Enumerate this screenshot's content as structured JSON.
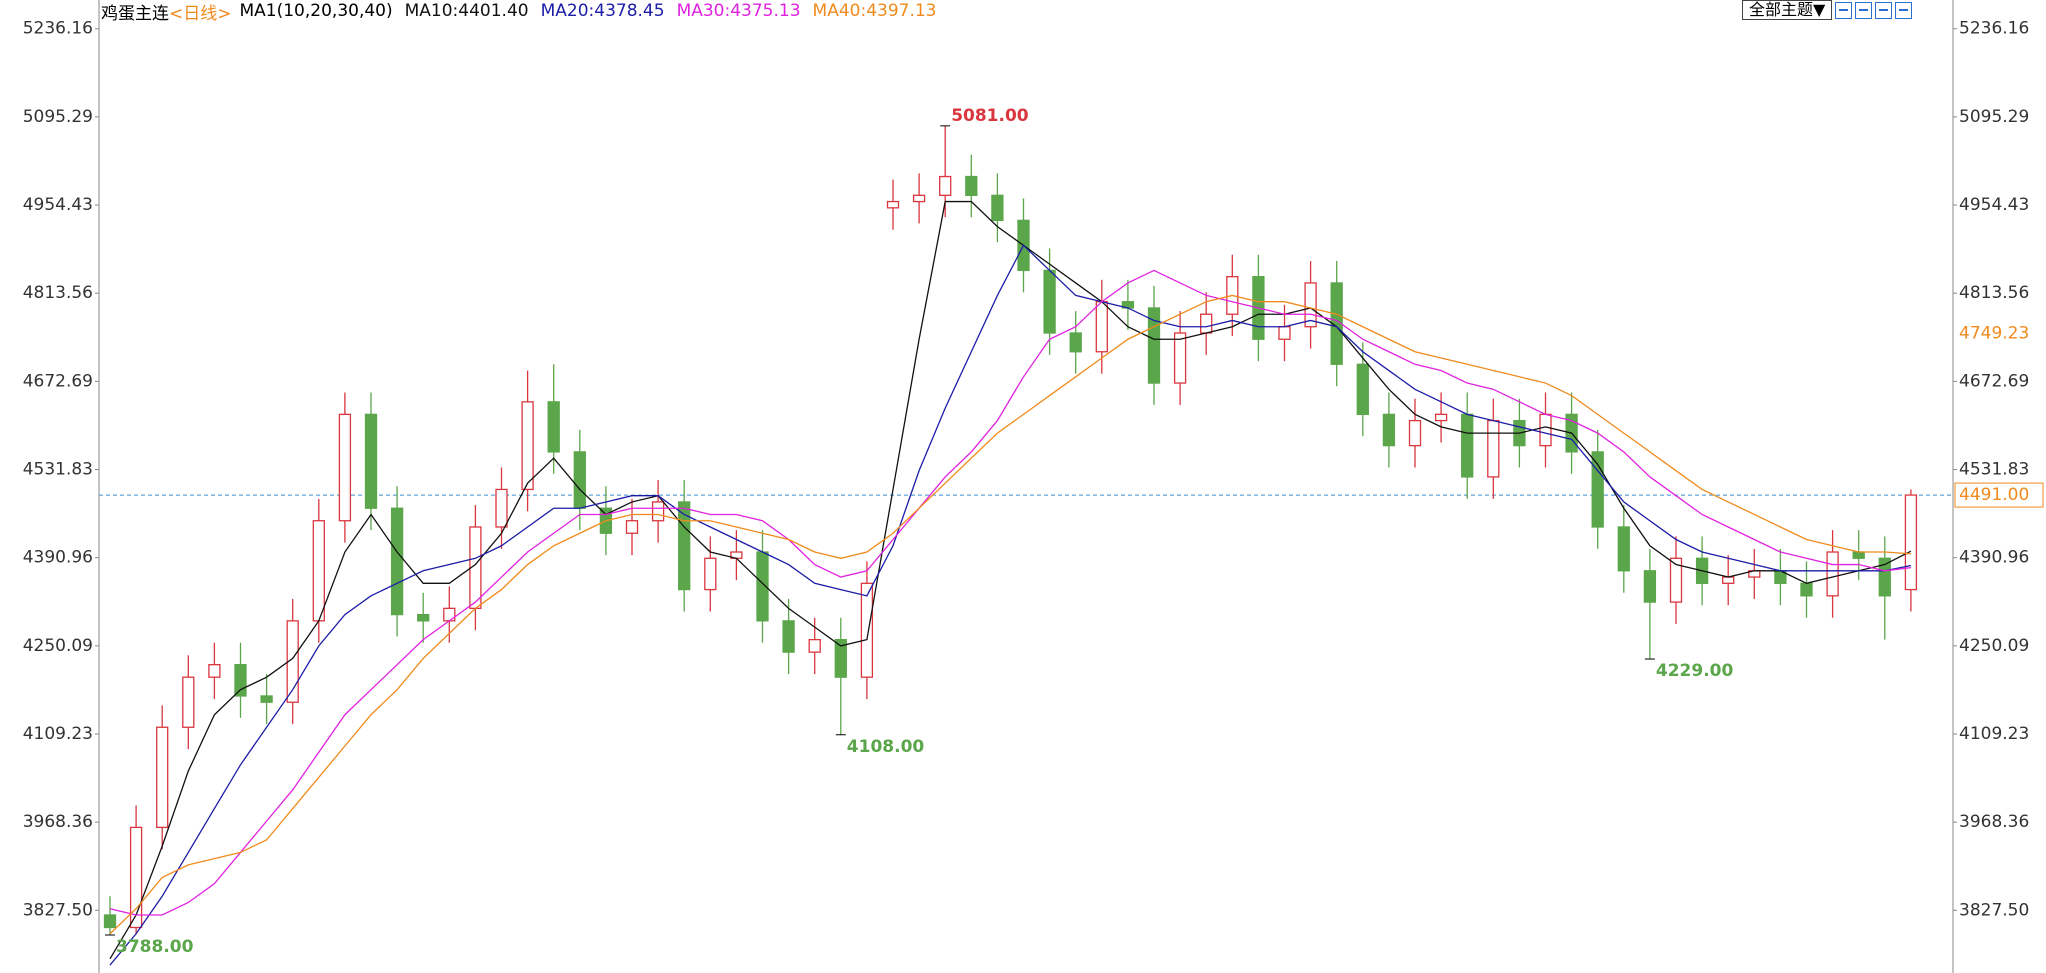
{
  "chart_data": {
    "type": "candlestick",
    "title": "鸡蛋主连",
    "period": "<日线>",
    "indicator": "MA1(10,20,30,40)",
    "up_color": "#d9363e",
    "down_color": "#5ba64a",
    "ylim": [
      3727.3,
      5282.1
    ],
    "yticks": [
      {
        "value": 3827.5,
        "label": "3827.50"
      },
      3968.36,
      4109.23,
      4250.09,
      4390.96,
      4531.83,
      4672.69,
      4813.56,
      4954.43,
      5095.29,
      5236.16
    ],
    "candles": {
      "open": [
        3820,
        3800,
        3960,
        4120,
        4200,
        4220,
        4170,
        4160,
        4290,
        4450,
        4620,
        4470,
        4300,
        4290,
        4310,
        4440,
        4500,
        4640,
        4560,
        4470,
        4430,
        4450,
        4480,
        4340,
        4390,
        4400,
        4290,
        4240,
        4260,
        4200,
        4950,
        4960,
        4970,
        5000,
        4970,
        4930,
        4850,
        4750,
        4720,
        4800,
        4790,
        4670,
        4750,
        4780,
        4840,
        4740,
        4760,
        4830,
        4700,
        4620,
        4570,
        4610,
        4620,
        4520,
        4610,
        4570,
        4620,
        4560,
        4440,
        4370,
        4320,
        4390,
        4350,
        4360,
        4370,
        4350,
        4330,
        4400,
        4390,
        4340
      ],
      "high": [
        3850,
        3995,
        4155,
        4235,
        4255,
        4255,
        4205,
        4325,
        4485,
        4655,
        4655,
        4505,
        4335,
        4345,
        4475,
        4535,
        4690,
        4700,
        4595,
        4505,
        4485,
        4515,
        4515,
        4425,
        4435,
        4435,
        4325,
        4295,
        4295,
        4385,
        4995,
        5005,
        5081,
        5035,
        5005,
        4965,
        4885,
        4785,
        4835,
        4835,
        4825,
        4785,
        4815,
        4875,
        4875,
        4795,
        4865,
        4865,
        4735,
        4655,
        4645,
        4655,
        4655,
        4645,
        4645,
        4655,
        4655,
        4595,
        4475,
        4405,
        4425,
        4425,
        4395,
        4405,
        4405,
        4385,
        4435,
        4435,
        4425,
        4500
      ],
      "low": [
        3788,
        3790,
        3925,
        4085,
        4165,
        4135,
        4125,
        4125,
        4255,
        4415,
        4435,
        4265,
        4255,
        4255,
        4275,
        4405,
        4465,
        4525,
        4435,
        4395,
        4395,
        4415,
        4305,
        4305,
        4355,
        4255,
        4205,
        4205,
        4108,
        4165,
        4915,
        4925,
        4935,
        4935,
        4895,
        4815,
        4715,
        4685,
        4685,
        4755,
        4635,
        4635,
        4715,
        4745,
        4705,
        4705,
        4725,
        4665,
        4585,
        4535,
        4535,
        4575,
        4485,
        4485,
        4535,
        4535,
        4525,
        4405,
        4335,
        4229,
        4285,
        4315,
        4315,
        4325,
        4315,
        4295,
        4295,
        4355,
        4260,
        4305
      ],
      "close": [
        3800,
        3960,
        4120,
        4200,
        4220,
        4170,
        4160,
        4290,
        4450,
        4620,
        4470,
        4300,
        4290,
        4310,
        4440,
        4500,
        4640,
        4560,
        4470,
        4430,
        4450,
        4480,
        4340,
        4390,
        4400,
        4290,
        4240,
        4260,
        4200,
        4350,
        4960,
        4970,
        5000,
        4970,
        4930,
        4850,
        4750,
        4720,
        4800,
        4790,
        4670,
        4750,
        4780,
        4840,
        4740,
        4760,
        4830,
        4700,
        4620,
        4570,
        4610,
        4620,
        4520,
        4610,
        4570,
        4620,
        4560,
        4440,
        4370,
        4320,
        4390,
        4350,
        4360,
        4370,
        4350,
        4330,
        4400,
        4390,
        4330,
        4491
      ]
    },
    "series": [
      {
        "name": "MA10:4401.40",
        "color": "#111111",
        "values": [
          3750,
          3820,
          3930,
          4050,
          4140,
          4180,
          4200,
          4230,
          4290,
          4400,
          4460,
          4400,
          4350,
          4350,
          4380,
          4430,
          4510,
          4550,
          4500,
          4460,
          4480,
          4490,
          4440,
          4400,
          4390,
          4350,
          4310,
          4280,
          4250,
          4260,
          4500,
          4740,
          4960,
          4960,
          4920,
          4890,
          4860,
          4830,
          4800,
          4760,
          4740,
          4740,
          4750,
          4760,
          4780,
          4780,
          4790,
          4760,
          4710,
          4660,
          4620,
          4600,
          4590,
          4590,
          4590,
          4600,
          4590,
          4540,
          4470,
          4410,
          4380,
          4370,
          4360,
          4370,
          4370,
          4350,
          4360,
          4370,
          4380,
          4401.4
        ]
      },
      {
        "name": "MA20:4378.45",
        "color": "#1c1ca8",
        "values": [
          3740,
          3790,
          3850,
          3920,
          3990,
          4060,
          4120,
          4180,
          4250,
          4300,
          4330,
          4350,
          4370,
          4380,
          4390,
          4410,
          4440,
          4470,
          4470,
          4480,
          4490,
          4490,
          4460,
          4440,
          4420,
          4400,
          4380,
          4350,
          4340,
          4330,
          4410,
          4530,
          4630,
          4720,
          4810,
          4890,
          4850,
          4810,
          4800,
          4790,
          4770,
          4760,
          4760,
          4770,
          4760,
          4760,
          4770,
          4760,
          4720,
          4690,
          4660,
          4640,
          4620,
          4610,
          4600,
          4590,
          4580,
          4530,
          4480,
          4450,
          4420,
          4400,
          4390,
          4380,
          4370,
          4370,
          4370,
          4370,
          4370,
          4378.45
        ]
      },
      {
        "name": "MA30:4375.13",
        "color": "#e022e0",
        "values": [
          3830,
          3820,
          3820,
          3840,
          3870,
          3920,
          3970,
          4020,
          4080,
          4140,
          4180,
          4220,
          4260,
          4290,
          4320,
          4360,
          4400,
          4430,
          4460,
          4460,
          4470,
          4470,
          4470,
          4460,
          4460,
          4450,
          4420,
          4380,
          4360,
          4370,
          4420,
          4470,
          4520,
          4560,
          4610,
          4680,
          4740,
          4760,
          4800,
          4830,
          4850,
          4830,
          4810,
          4800,
          4790,
          4780,
          4780,
          4770,
          4740,
          4720,
          4700,
          4690,
          4670,
          4660,
          4640,
          4620,
          4610,
          4590,
          4560,
          4520,
          4490,
          4460,
          4440,
          4420,
          4400,
          4390,
          4380,
          4380,
          4370,
          4375.13
        ]
      },
      {
        "name": "MA40:4397.13",
        "color": "#f08a1c",
        "values": [
          3790,
          3830,
          3880,
          3900,
          3910,
          3920,
          3940,
          3990,
          4040,
          4090,
          4140,
          4180,
          4230,
          4270,
          4310,
          4340,
          4380,
          4410,
          4430,
          4450,
          4460,
          4460,
          4450,
          4450,
          4440,
          4430,
          4420,
          4400,
          4390,
          4400,
          4430,
          4470,
          4510,
          4550,
          4590,
          4620,
          4650,
          4680,
          4710,
          4740,
          4760,
          4780,
          4800,
          4810,
          4800,
          4800,
          4790,
          4780,
          4760,
          4740,
          4720,
          4710,
          4700,
          4690,
          4680,
          4670,
          4650,
          4620,
          4590,
          4560,
          4530,
          4500,
          4480,
          4460,
          4440,
          4420,
          4410,
          4400,
          4400,
          4397.13
        ]
      }
    ],
    "annotations": [
      {
        "value": 5081,
        "label": "5081.00",
        "at": "high"
      },
      {
        "value": 4108,
        "label": "4108.00",
        "at": "low"
      },
      {
        "value": 4229,
        "label": "4229.00",
        "at": "low"
      },
      {
        "value": 3788,
        "label": "3788.00",
        "at": "low"
      }
    ],
    "price_line": {
      "value": 4491,
      "label": "4491.00",
      "color": "#3a8fd4"
    },
    "right_marker": {
      "value": 4749.23,
      "label": "4749.23",
      "color": "#f08a1c"
    }
  },
  "toolbar": {
    "theme_button": "全部主题▼"
  }
}
